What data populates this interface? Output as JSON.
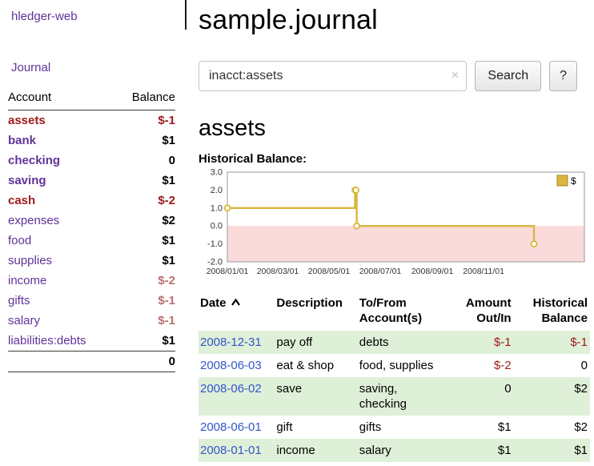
{
  "colors": {
    "link_purple": "#613399",
    "negative_dark": "#9c1a1a",
    "negative_muted": "#bb6f6f",
    "date_link_blue": "#3355cc",
    "row_green": "#dff0d8",
    "chart_line_gold": "#d9b63e",
    "chart_negative_pink": "#fadada"
  },
  "sidebar": {
    "app_title": "hledger-web",
    "nav_journal": "Journal",
    "headers": {
      "account": "Account",
      "balance": "Balance"
    },
    "accounts": [
      {
        "name": "assets",
        "balance": "$-1"
      },
      {
        "name": "bank",
        "balance": "$1"
      },
      {
        "name": "checking",
        "balance": "0"
      },
      {
        "name": "saving",
        "balance": "$1"
      },
      {
        "name": "cash",
        "balance": "$-2"
      },
      {
        "name": "expenses",
        "balance": "$2"
      },
      {
        "name": "food",
        "balance": "$1"
      },
      {
        "name": "supplies",
        "balance": "$1"
      },
      {
        "name": "income",
        "balance": "$-2"
      },
      {
        "name": "gifts",
        "balance": "$-1"
      },
      {
        "name": "salary",
        "balance": "$-1"
      },
      {
        "name": "liabilities:debts",
        "balance": "$1"
      }
    ],
    "total": "0"
  },
  "main": {
    "title": "sample.journal",
    "search": {
      "value": "inacct:assets",
      "clear_icon": "×",
      "button": "Search",
      "help": "?"
    },
    "account_heading": "assets",
    "chart_label": "Historical Balance:"
  },
  "chart_data": {
    "type": "line",
    "style": "step-after",
    "title": "Historical Balance:",
    "series": [
      {
        "name": "$",
        "x": [
          "2008-01-01",
          "2008-06-01",
          "2008-06-02",
          "2008-06-03",
          "2008-12-31"
        ],
        "y": [
          1,
          2,
          2,
          0,
          -1
        ]
      }
    ],
    "ylim": [
      -2,
      3
    ],
    "y_ticks": [
      "3.0",
      "2.0",
      "1.0",
      "0.0",
      "-1.0",
      "-2.0"
    ],
    "x_ticks": [
      "2008/01/01",
      "2008/03/01",
      "2008/05/01",
      "2008/07/01",
      "2008/09/01",
      "2008/11/01"
    ],
    "x_domain": [
      "2008-01-01",
      "2009-03-01"
    ],
    "grid": false,
    "legend_position": "top-right",
    "line_color": "#d9b63e",
    "negative_region_color": "#fadada"
  },
  "register": {
    "headers": {
      "date": "Date",
      "description": "Description",
      "accounts": "To/From Account(s)",
      "amount": "Amount Out/In",
      "balance": "Historical Balance"
    },
    "rows": [
      {
        "date": "2008-12-31",
        "description": "pay off",
        "accounts": "debts",
        "amount": "$-1",
        "balance": "$-1"
      },
      {
        "date": "2008-06-03",
        "description": "eat & shop",
        "accounts": "food, supplies",
        "amount": "$-2",
        "balance": "0"
      },
      {
        "date": "2008-06-02",
        "description": "save",
        "accounts": "saving, checking",
        "amount": "0",
        "balance": "$2"
      },
      {
        "date": "2008-06-01",
        "description": "gift",
        "accounts": "gifts",
        "amount": "$1",
        "balance": "$2"
      },
      {
        "date": "2008-01-01",
        "description": "income",
        "accounts": "salary",
        "amount": "$1",
        "balance": "$1"
      }
    ]
  }
}
